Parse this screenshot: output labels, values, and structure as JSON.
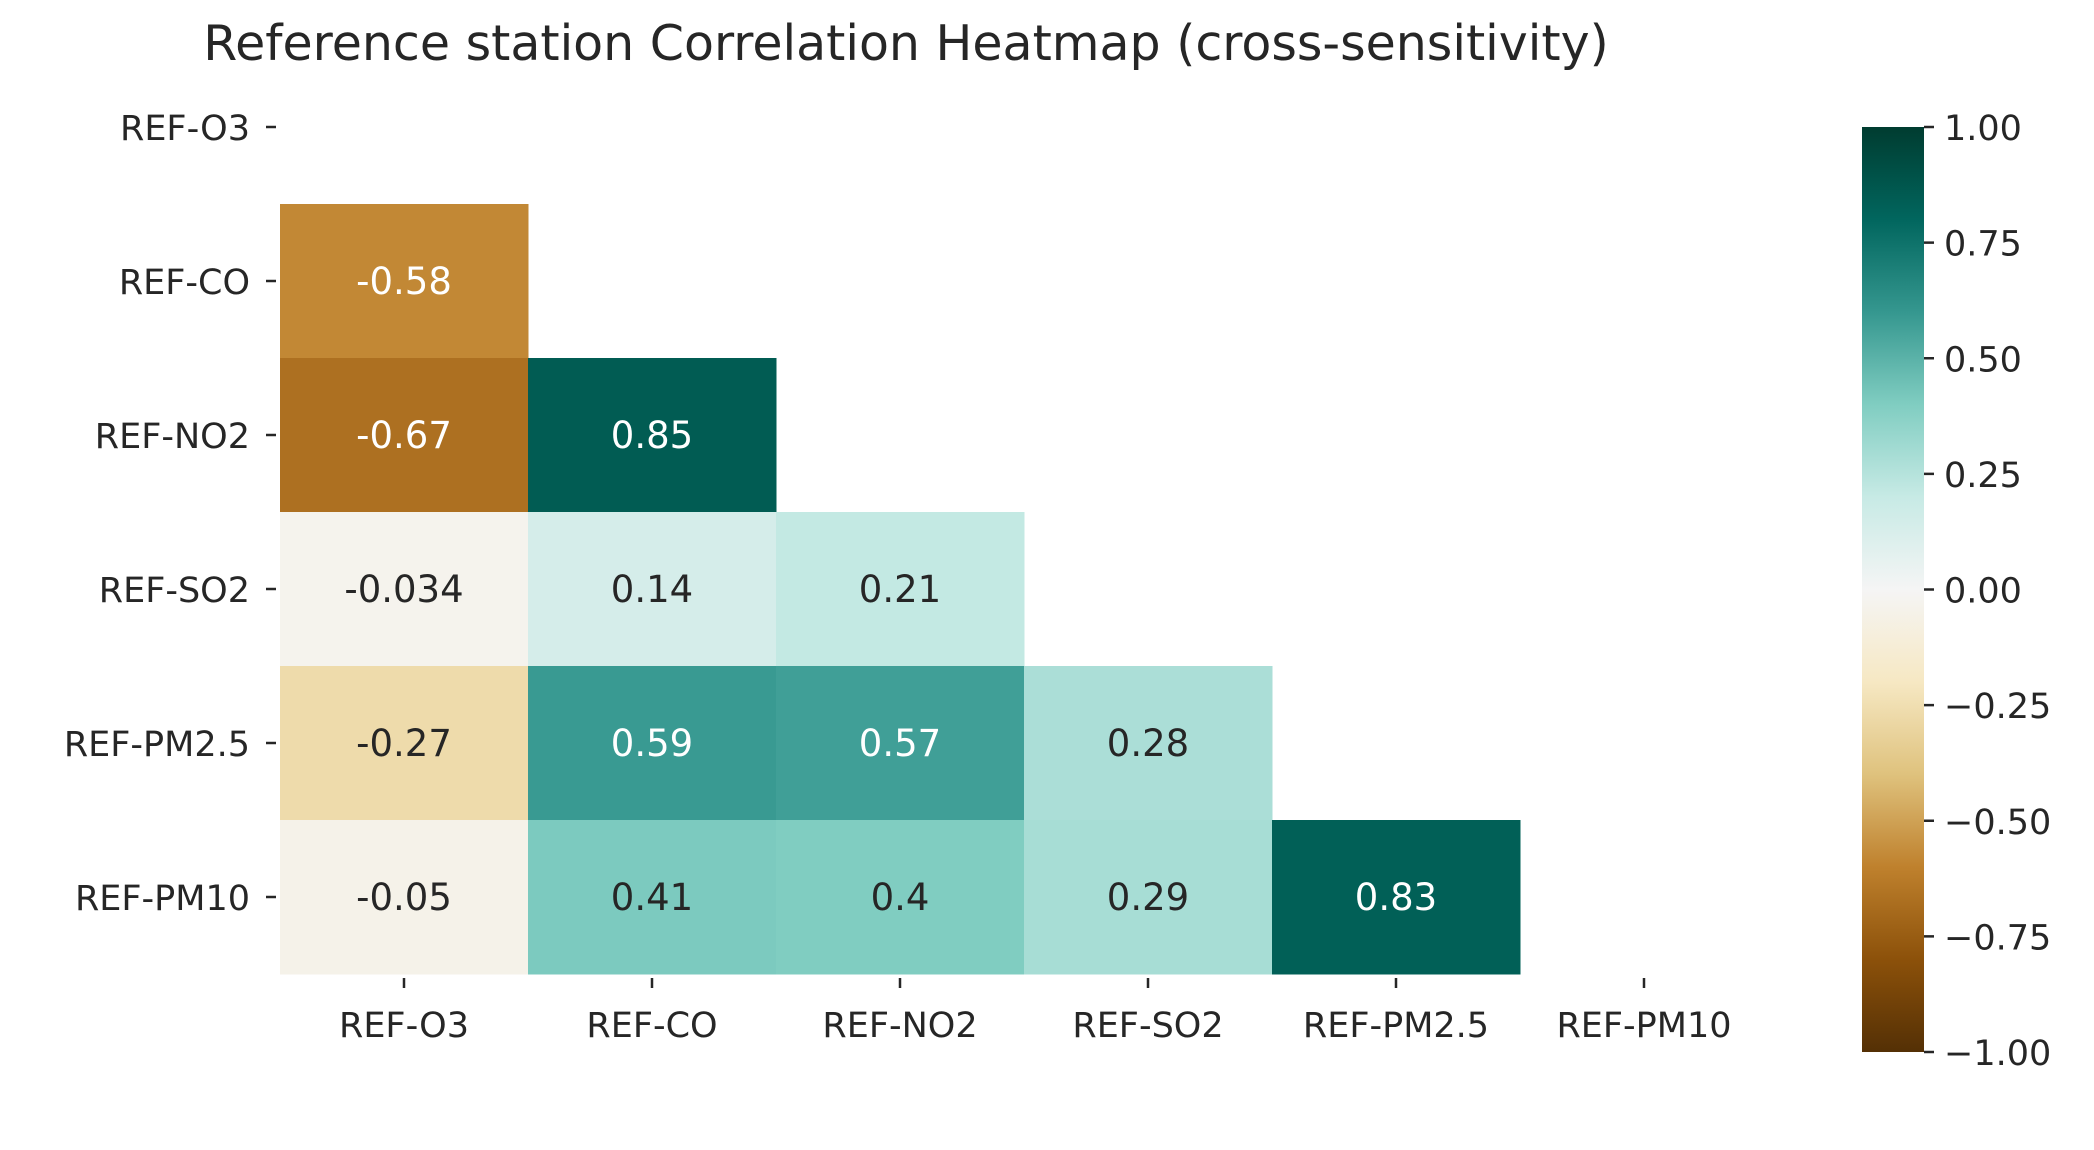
{
  "chart_data": {
    "type": "heatmap",
    "title": "Reference station Correlation Heatmap  (cross-sensitivity)",
    "xlabel": "",
    "ylabel": "",
    "rows": [
      "REF-O3",
      "REF-CO",
      "REF-NO2",
      "REF-SO2",
      "REF-PM2.5",
      "REF-PM10"
    ],
    "columns": [
      "REF-O3",
      "REF-CO",
      "REF-NO2",
      "REF-SO2",
      "REF-PM2.5",
      "REF-PM10"
    ],
    "mask": "upper-triangle-including-diagonal",
    "cells": [
      {
        "row": "REF-CO",
        "col": "REF-O3",
        "value": -0.58,
        "label": "-0.58"
      },
      {
        "row": "REF-NO2",
        "col": "REF-O3",
        "value": -0.67,
        "label": "-0.67"
      },
      {
        "row": "REF-NO2",
        "col": "REF-CO",
        "value": 0.85,
        "label": "0.85"
      },
      {
        "row": "REF-SO2",
        "col": "REF-O3",
        "value": -0.034,
        "label": "-0.034"
      },
      {
        "row": "REF-SO2",
        "col": "REF-CO",
        "value": 0.14,
        "label": "0.14"
      },
      {
        "row": "REF-SO2",
        "col": "REF-NO2",
        "value": 0.21,
        "label": "0.21"
      },
      {
        "row": "REF-PM2.5",
        "col": "REF-O3",
        "value": -0.27,
        "label": "-0.27"
      },
      {
        "row": "REF-PM2.5",
        "col": "REF-CO",
        "value": 0.59,
        "label": "0.59"
      },
      {
        "row": "REF-PM2.5",
        "col": "REF-NO2",
        "value": 0.57,
        "label": "0.57"
      },
      {
        "row": "REF-PM2.5",
        "col": "REF-SO2",
        "value": 0.28,
        "label": "0.28"
      },
      {
        "row": "REF-PM10",
        "col": "REF-O3",
        "value": -0.05,
        "label": "-0.05"
      },
      {
        "row": "REF-PM10",
        "col": "REF-CO",
        "value": 0.41,
        "label": "0.41"
      },
      {
        "row": "REF-PM10",
        "col": "REF-NO2",
        "value": 0.4,
        "label": "0.4"
      },
      {
        "row": "REF-PM10",
        "col": "REF-SO2",
        "value": 0.29,
        "label": "0.29"
      },
      {
        "row": "REF-PM10",
        "col": "REF-PM2.5",
        "value": 0.83,
        "label": "0.83"
      }
    ],
    "colorbar": {
      "colormap": "BrBG",
      "range": [
        -1,
        1
      ],
      "ticks": [
        1.0,
        0.75,
        0.5,
        0.25,
        0.0,
        -0.25,
        -0.5,
        -0.75,
        -1.0
      ],
      "tick_labels": [
        "1.00",
        "0.75",
        "0.50",
        "0.25",
        "0.00",
        "−0.25",
        "−0.50",
        "−0.75",
        "−1.00"
      ]
    },
    "colormap_stops": [
      {
        "v": -1.0,
        "color": "#543005"
      },
      {
        "v": -0.8,
        "color": "#8c510a"
      },
      {
        "v": -0.6,
        "color": "#bf812d"
      },
      {
        "v": -0.4,
        "color": "#dfc27d"
      },
      {
        "v": -0.2,
        "color": "#f6e8c3"
      },
      {
        "v": 0.0,
        "color": "#f5f5f5"
      },
      {
        "v": 0.2,
        "color": "#c7eae5"
      },
      {
        "v": 0.4,
        "color": "#80cdc1"
      },
      {
        "v": 0.6,
        "color": "#35978f"
      },
      {
        "v": 0.8,
        "color": "#01665e"
      },
      {
        "v": 1.0,
        "color": "#003c30"
      }
    ],
    "annotation_colors": {
      "dark_text": "#262626",
      "light_text": "#ffffff"
    }
  }
}
